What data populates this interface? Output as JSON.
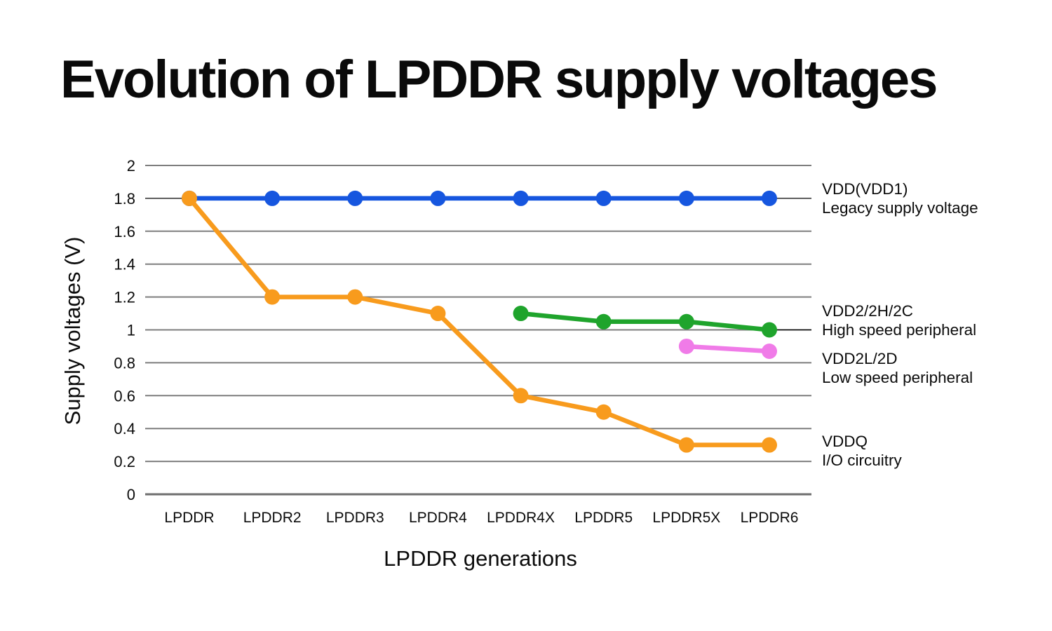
{
  "title": "Evolution of LPDDR supply voltages",
  "chart_data": {
    "type": "line",
    "title": "Evolution of LPDDR supply voltages",
    "xlabel": "LPDDR generations",
    "ylabel": "Supply voltages (V)",
    "ylim": [
      0,
      2
    ],
    "grid": true,
    "legend_position": "right-of-plot",
    "categories": [
      "LPDDR",
      "LPDDR2",
      "LPDDR3",
      "LPDDR4",
      "LPDDR4X",
      "LPDDR5",
      "LPDDR5X",
      "LPDDR6"
    ],
    "yticks": [
      {
        "value": 2,
        "label": "2"
      },
      {
        "value": 1.8,
        "label": "1.8"
      },
      {
        "value": 1.6,
        "label": "1.6"
      },
      {
        "value": 1.4,
        "label": "1.4"
      },
      {
        "value": 1.2,
        "label": "1.2"
      },
      {
        "value": 1,
        "label": "1"
      },
      {
        "value": 0.8,
        "label": "0.8"
      },
      {
        "value": 0.6,
        "label": "0.6"
      },
      {
        "value": 0.4,
        "label": "0.4"
      },
      {
        "value": 0.2,
        "label": "0.2"
      },
      {
        "value": 0,
        "label": "0"
      }
    ],
    "emphasized_gridline": {
      "value": 1.8,
      "color": "#000000"
    },
    "right_leader_line": {
      "value": 1.0,
      "from_category_index": 7,
      "color": "#000000"
    },
    "series": [
      {
        "name": "VDD(VDD1)",
        "description": "Legacy supply voltage",
        "color": "#1656DF",
        "values": [
          1.8,
          1.8,
          1.8,
          1.8,
          1.8,
          1.8,
          1.8,
          1.8
        ]
      },
      {
        "name": "VDD2/2H/2C",
        "description": "High speed peripheral",
        "color": "#1FA42C",
        "values": [
          null,
          null,
          null,
          null,
          1.1,
          1.05,
          1.05,
          1.0
        ]
      },
      {
        "name": "VDD2L/2D",
        "description": "Low speed peripheral",
        "color": "#F07BE8",
        "values": [
          null,
          null,
          null,
          null,
          null,
          null,
          0.9,
          0.87
        ]
      },
      {
        "name": "VDDQ",
        "description": "I/O circuitry",
        "color": "#F89B1D",
        "values": [
          1.8,
          1.2,
          1.2,
          1.1,
          0.6,
          0.5,
          0.3,
          0.3
        ]
      }
    ],
    "colors": {
      "gridline": "#7E7E7E",
      "axis_line": "#6E6E6E",
      "text": "#0B0B0B"
    }
  }
}
